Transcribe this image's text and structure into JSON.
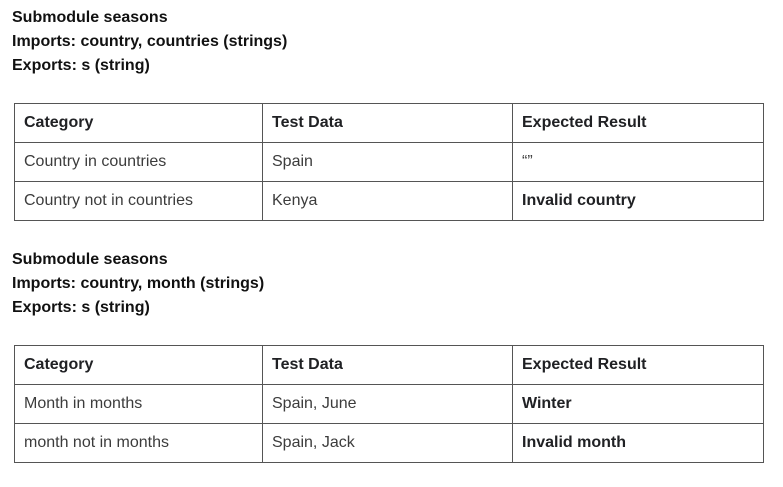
{
  "sections": [
    {
      "heading": [
        "Submodule seasons",
        "Imports: country, countries (strings)",
        "Exports: s (string)"
      ],
      "table": {
        "headers": [
          "Category",
          "Test Data",
          "Expected Result"
        ],
        "rows": [
          [
            "Country in countries",
            "Spain",
            "“”"
          ],
          [
            "Country not in countries",
            "Kenya",
            "Invalid country"
          ]
        ]
      }
    },
    {
      "heading": [
        "Submodule seasons",
        "Imports: country, month (strings)",
        "Exports: s (string)"
      ],
      "table": {
        "headers": [
          "Category",
          "Test Data",
          "Expected Result"
        ],
        "rows": [
          [
            "Month in months",
            "Spain, June",
            "Winter"
          ],
          [
            "month not in months",
            "Spain, Jack",
            "Invalid month"
          ]
        ]
      }
    }
  ]
}
